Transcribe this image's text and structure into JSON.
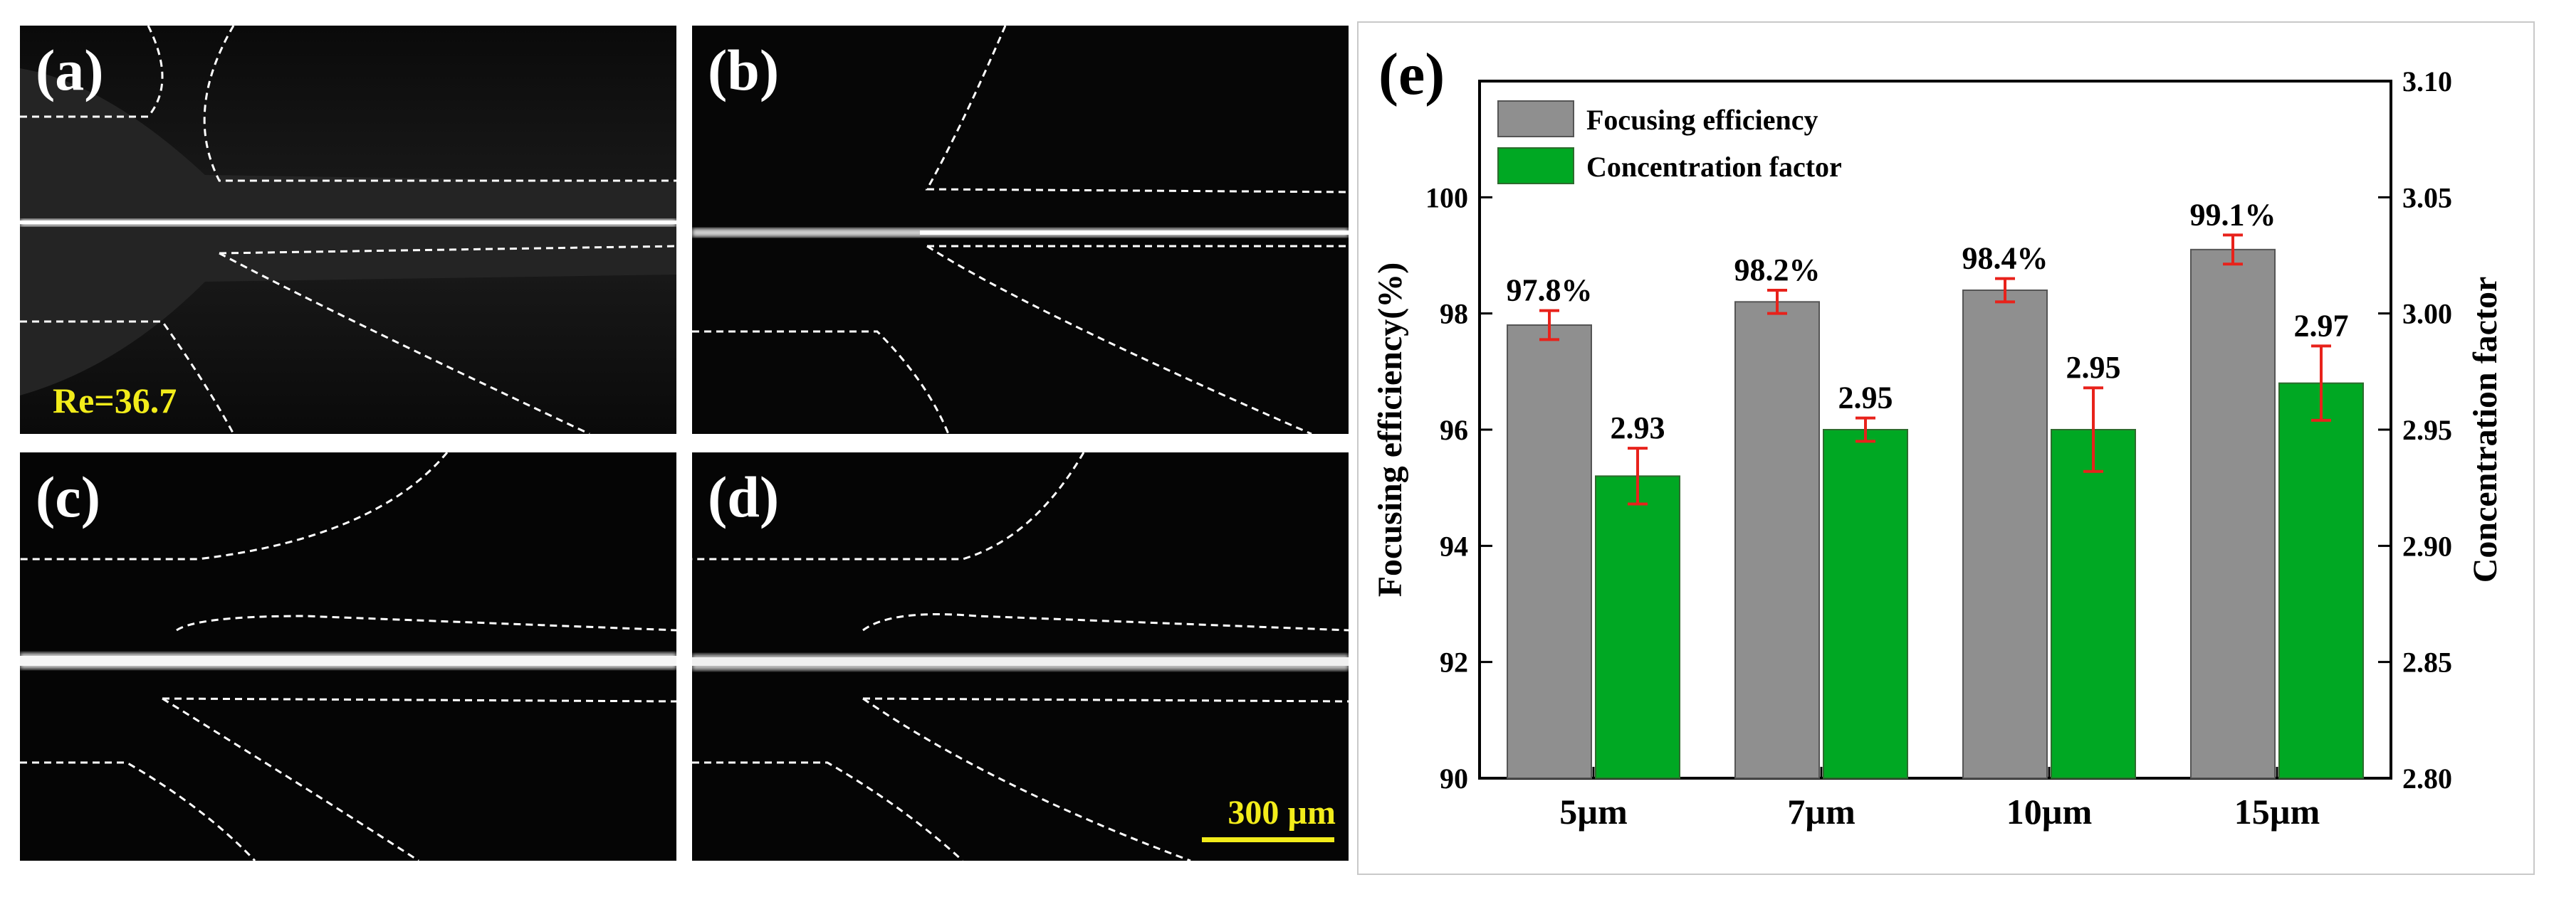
{
  "panels": [
    {
      "id": "a",
      "label": "(a)",
      "re_label": "Re=36.7"
    },
    {
      "id": "b",
      "label": "(b)"
    },
    {
      "id": "c",
      "label": "(c)"
    },
    {
      "id": "d",
      "label": "(d)",
      "scale_bar": "300 µm"
    }
  ],
  "colors": {
    "focusing": "#8f8f8f",
    "concentration": "#00a823",
    "error_bar": "#e8221b",
    "annotation_yellow": "#f2ec1a"
  },
  "chart_data": {
    "type": "bar",
    "panel_label": "(e)",
    "categories": [
      "5µm",
      "7µm",
      "10µm",
      "15µm"
    ],
    "series": [
      {
        "name": "Focusing efficiency",
        "axis": "left",
        "values": [
          97.8,
          98.2,
          98.4,
          99.1
        ],
        "errors": [
          0.25,
          0.2,
          0.2,
          0.25
        ],
        "labels": [
          "97.8%",
          "98.2%",
          "98.4%",
          "99.1%"
        ]
      },
      {
        "name": "Concentration factor",
        "axis": "right",
        "values": [
          2.93,
          2.95,
          2.95,
          2.97
        ],
        "errors": [
          0.012,
          0.005,
          0.018,
          0.016
        ],
        "labels": [
          "2.93",
          "2.95",
          "2.95",
          "2.97"
        ]
      }
    ],
    "ylabel_left": "Focusing efficiency(%)",
    "ylabel_right": "Concentration factor",
    "ylim_left": [
      90,
      102
    ],
    "ylim_right": [
      2.8,
      3.1
    ],
    "yticks_left": [
      "90",
      "92",
      "94",
      "96",
      "98",
      "100"
    ],
    "yticks_right": [
      "2.80",
      "2.85",
      "2.90",
      "2.95",
      "3.00",
      "3.05",
      "3.10"
    ],
    "legend_position": "top-left"
  }
}
